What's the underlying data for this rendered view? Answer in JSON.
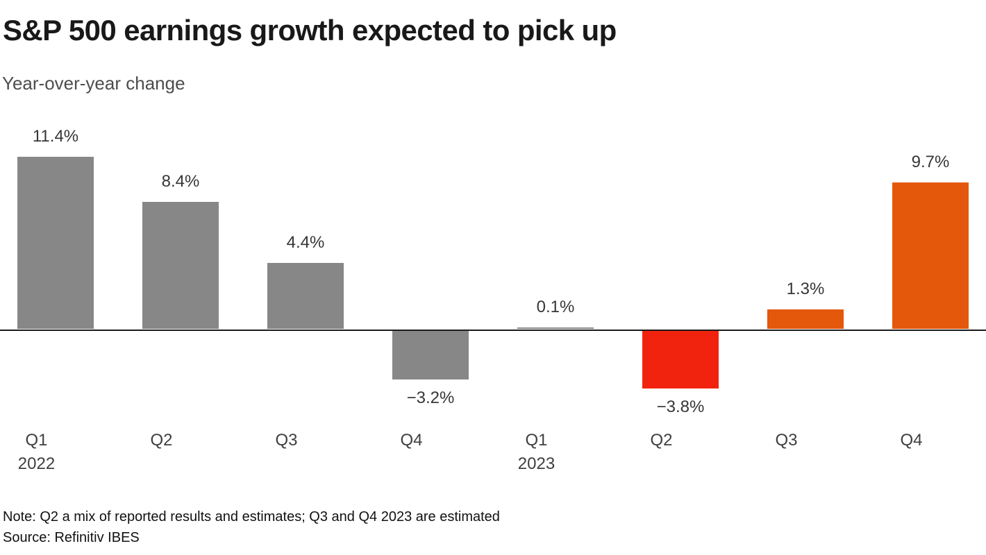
{
  "header": {
    "title": "S&P 500 earnings growth expected to pick up",
    "subtitle": "Year-over-year change"
  },
  "chart_data": {
    "type": "bar",
    "title": "S&P 500 earnings growth expected to pick up",
    "ylabel": "Year-over-year change (%)",
    "xlabel": "",
    "grid": false,
    "legend": false,
    "baseline": 0,
    "ylim": [
      -5,
      13
    ],
    "x": [
      "Q1 2022",
      "Q2 2022",
      "Q3 2022",
      "Q4 2022",
      "Q1 2023",
      "Q2 2023",
      "Q3 2023",
      "Q4 2023"
    ],
    "categories": [
      "Q1",
      "Q2",
      "Q3",
      "Q4",
      "Q1",
      "Q2",
      "Q3",
      "Q4"
    ],
    "year_markers": {
      "0": "2022",
      "4": "2023"
    },
    "values": [
      11.4,
      8.4,
      4.4,
      -3.2,
      0.1,
      -3.8,
      1.3,
      9.7
    ],
    "value_labels": [
      "11.4%",
      "8.4%",
      "4.4%",
      "−3.2%",
      "0.1%",
      "−3.8%",
      "1.3%",
      "9.7%"
    ],
    "bar_colors": [
      "#878787",
      "#878787",
      "#878787",
      "#878787",
      "#878787",
      "#f2230e",
      "#e4580c",
      "#e4580c"
    ]
  },
  "colors": {
    "bar_reported_gray": "#878787",
    "bar_negative_red": "#f2230e",
    "bar_estimate_orange": "#e4580c",
    "axis_line": "#1a1a1a"
  },
  "footer": {
    "note": "Note: Q2 a mix of reported results and estimates; Q3 and Q4 2023 are estimated",
    "source": "Source: Refinitiv IBES"
  }
}
